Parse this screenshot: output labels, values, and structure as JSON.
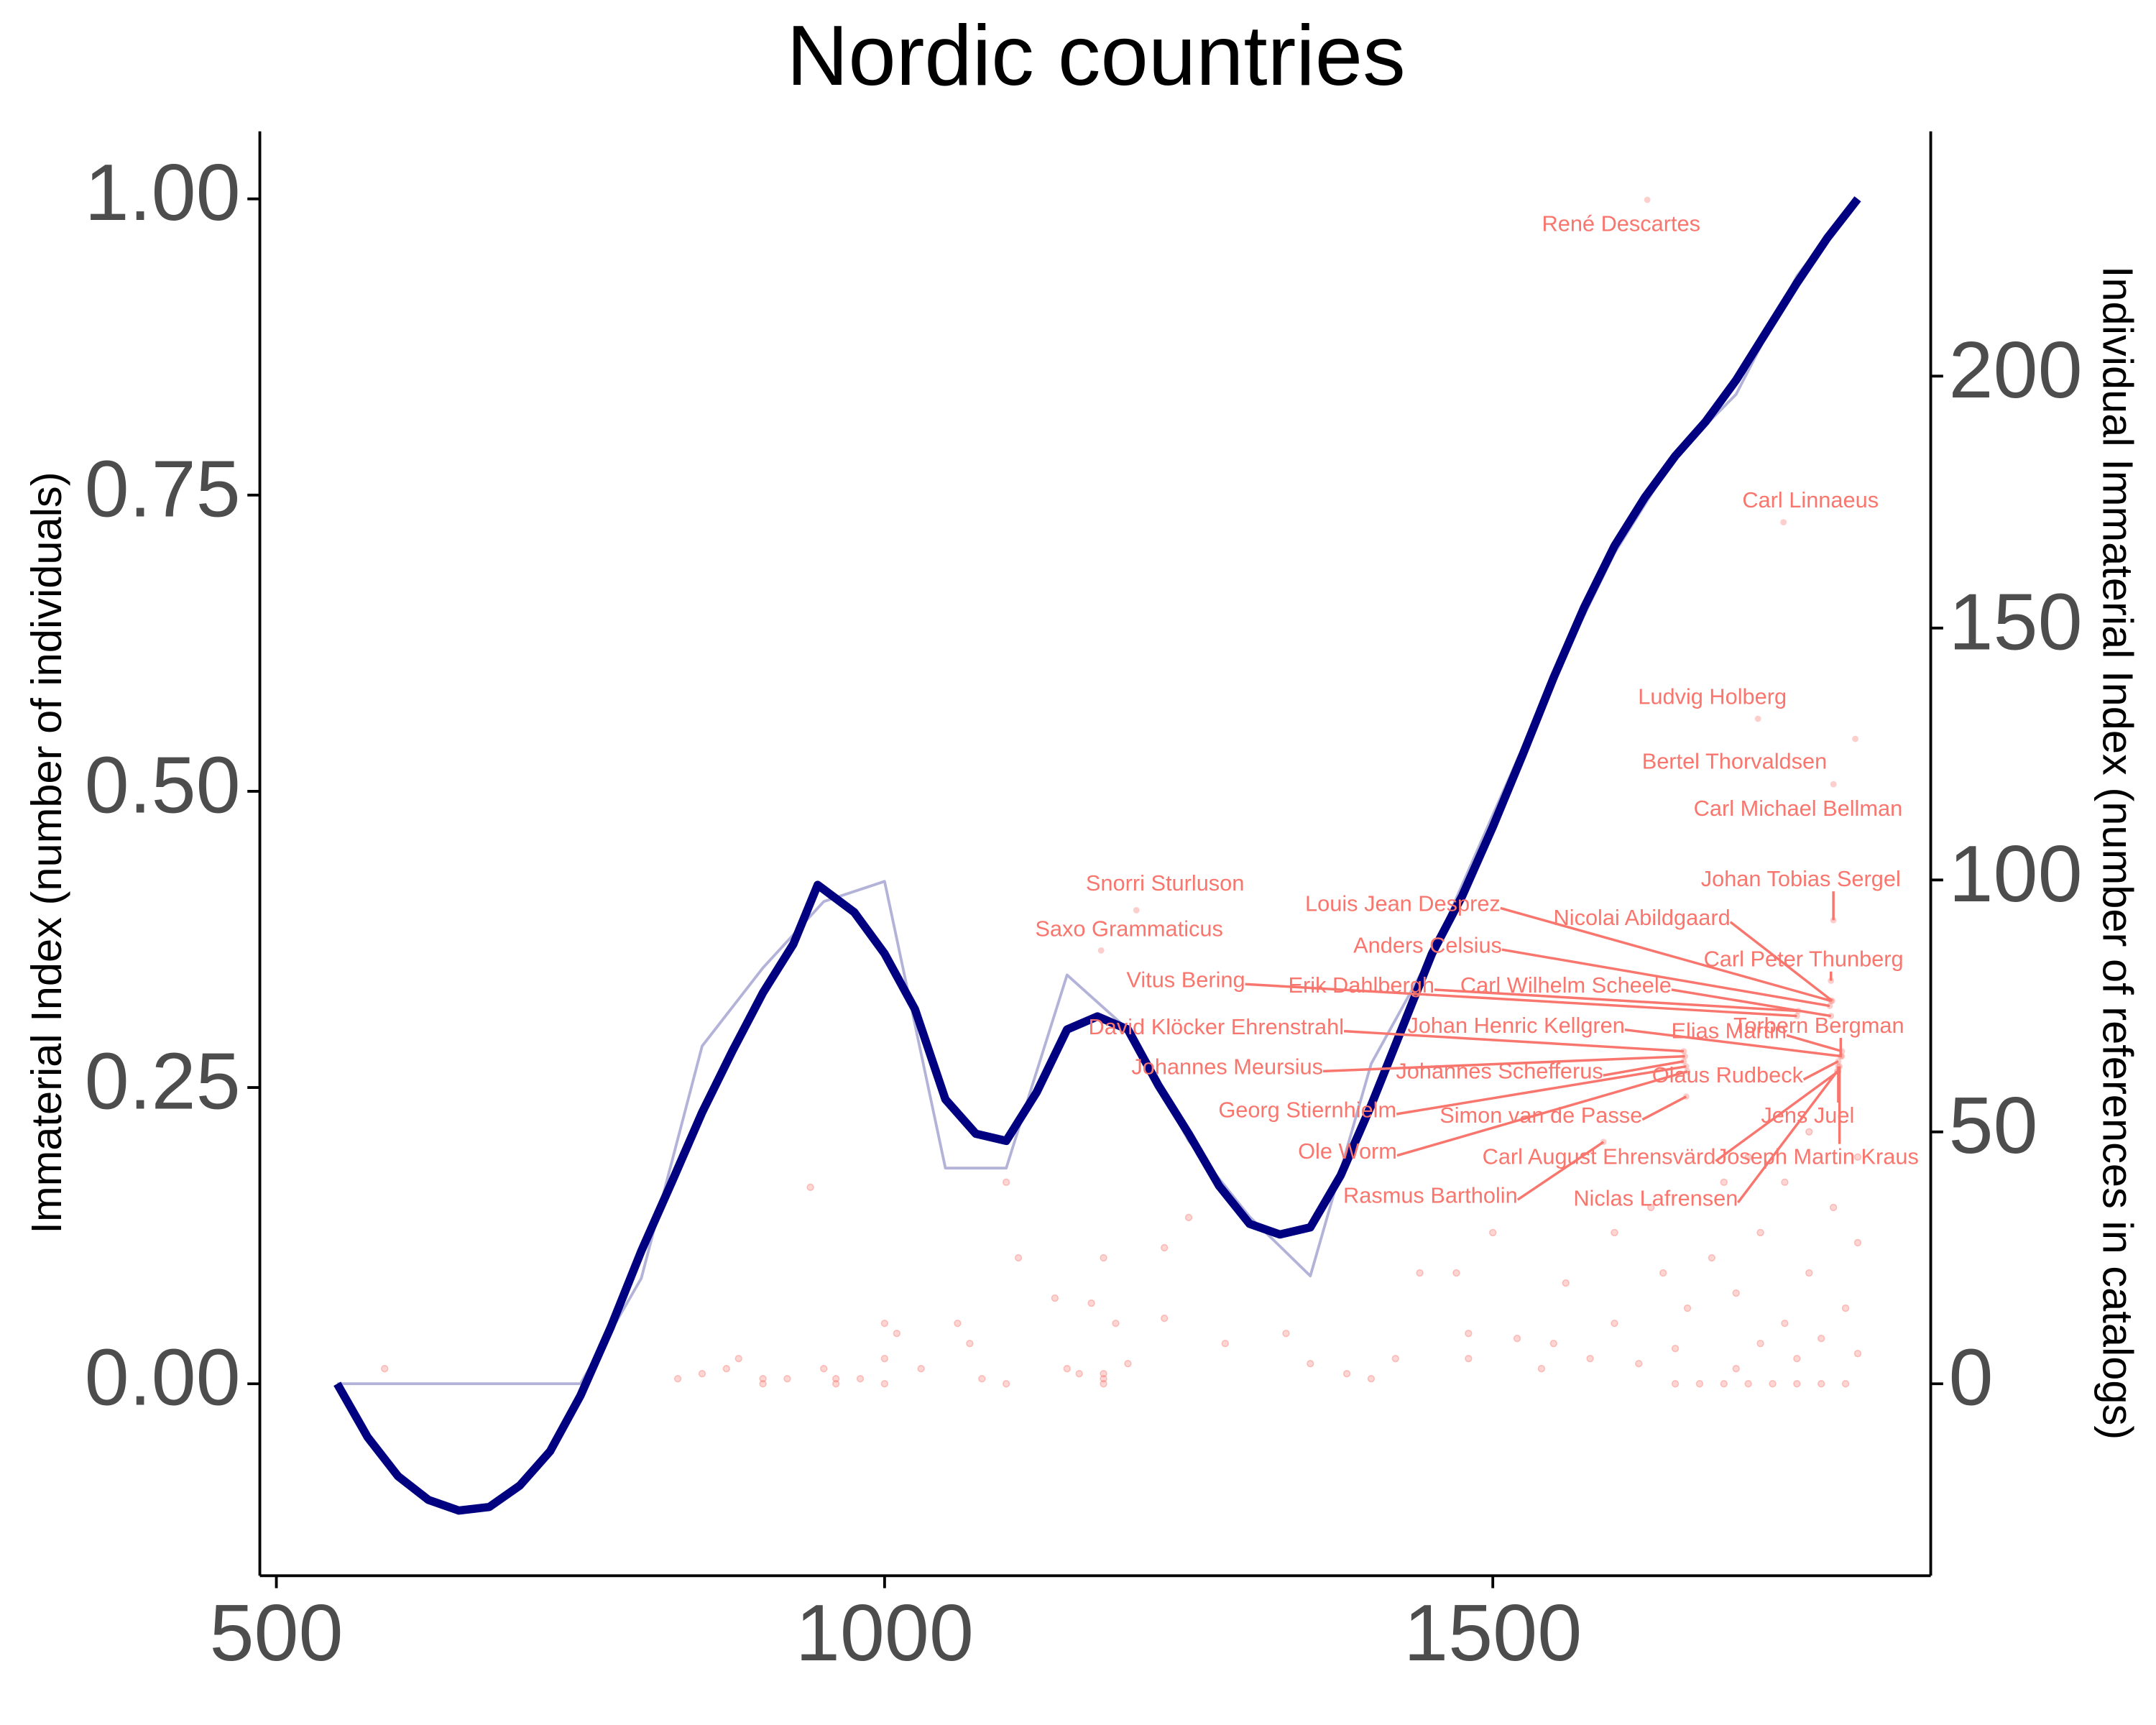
{
  "chart_data": {
    "type": "line",
    "title": "Nordic countries",
    "ylabel": "Immaterial Index (number of individuals)",
    "y2label": "Individual Immaterial Index (number of references in catalogs)",
    "xlim": [
      486.4,
      1860
    ],
    "ylim": [
      -0.162,
      1.057
    ],
    "y2lim": [
      -38.1,
      248.6
    ],
    "xticks": [
      500,
      1000,
      1500
    ],
    "yticks": [
      {
        "value": 0,
        "label": "0.00"
      },
      {
        "value": 0.25,
        "label": "0.25"
      },
      {
        "value": 0.5,
        "label": "0.50"
      },
      {
        "value": 0.75,
        "label": "0.75"
      },
      {
        "value": 1,
        "label": "1.00"
      }
    ],
    "y2ticks": [
      0,
      50,
      100,
      150,
      200
    ],
    "series": [
      {
        "color": "#b3b3d9",
        "x": [
          550,
          600,
          650,
          700,
          750,
          800,
          850,
          900,
          950,
          1000,
          1050,
          1100,
          1150,
          1200,
          1250,
          1300,
          1350,
          1400,
          1450,
          1500,
          1550,
          1600,
          1650,
          1700,
          1750,
          1800
        ],
        "values": [
          0,
          0,
          0,
          0,
          0,
          0.089,
          0.285,
          0.351,
          0.407,
          0.424,
          0.182,
          0.182,
          0.345,
          0.299,
          0.205,
          0.141,
          0.091,
          0.27,
          0.363,
          0.48,
          0.596,
          0.701,
          0.783,
          0.835,
          0.935,
          1.0
        ]
      },
      {
        "color": "#000080",
        "x": [
          550,
          575,
          600,
          625,
          650,
          675,
          700,
          725,
          750,
          775,
          800,
          825,
          850,
          875,
          900,
          925,
          945,
          975,
          1000,
          1025,
          1050,
          1075,
          1100,
          1125,
          1150,
          1175,
          1200,
          1225,
          1250,
          1275,
          1300,
          1325,
          1350,
          1375,
          1400,
          1425,
          1450,
          1475,
          1500,
          1525,
          1550,
          1575,
          1600,
          1625,
          1650,
          1675,
          1700,
          1725,
          1750,
          1775,
          1800
        ],
        "values": [
          0,
          -0.045,
          -0.078,
          -0.098,
          -0.107,
          -0.104,
          -0.086,
          -0.057,
          -0.01,
          0.048,
          0.112,
          0.17,
          0.229,
          0.281,
          0.33,
          0.371,
          0.421,
          0.398,
          0.363,
          0.316,
          0.24,
          0.211,
          0.205,
          0.246,
          0.299,
          0.31,
          0.299,
          0.252,
          0.211,
          0.167,
          0.135,
          0.126,
          0.132,
          0.176,
          0.235,
          0.299,
          0.363,
          0.412,
          0.47,
          0.532,
          0.596,
          0.655,
          0.707,
          0.748,
          0.783,
          0.812,
          0.847,
          0.888,
          0.929,
          0.967,
          1.0
        ]
      }
    ],
    "scatter": {
      "color": "#f8766d",
      "axis": "y2",
      "x": [
        589,
        830,
        850,
        870,
        880,
        900,
        900,
        920,
        939,
        950,
        960,
        960,
        980,
        1000,
        1000,
        1000,
        1010,
        1030,
        1060,
        1070,
        1080,
        1100,
        1100,
        1110,
        1140,
        1150,
        1160,
        1170,
        1180,
        1180,
        1180,
        1180,
        1190,
        1200,
        1230,
        1230,
        1250,
        1280,
        1330,
        1350,
        1380,
        1400,
        1420,
        1440,
        1470,
        1480,
        1480,
        1500,
        1520,
        1540,
        1550,
        1560,
        1580,
        1600,
        1600,
        1620,
        1630,
        1640,
        1650,
        1650,
        1660,
        1670,
        1680,
        1690,
        1690,
        1700,
        1700,
        1710,
        1710,
        1720,
        1720,
        1730,
        1740,
        1740,
        1750,
        1750,
        1760,
        1760,
        1770,
        1770,
        1780,
        1790,
        1790,
        1800,
        1800,
        1800
      ],
      "values": [
        3,
        1,
        2,
        3,
        5,
        1,
        0,
        1,
        39,
        3,
        1,
        0,
        1,
        5,
        12,
        0,
        10,
        3,
        12,
        8,
        1,
        40,
        0,
        25,
        17,
        3,
        2,
        16,
        1,
        2,
        25,
        0,
        12,
        4,
        13,
        27,
        33,
        8,
        10,
        4,
        2,
        1,
        5,
        22,
        22,
        5,
        10,
        30,
        9,
        3,
        8,
        20,
        5,
        12,
        30,
        4,
        35,
        22,
        7,
        0,
        15,
        0,
        25,
        40,
        0,
        3,
        18,
        45,
        0,
        8,
        30,
        0,
        12,
        40,
        5,
        0,
        22,
        50,
        9,
        0,
        35,
        15,
        0,
        6,
        28,
        45
      ]
    },
    "annotations": [
      {
        "text": "René Descartes",
        "x": 1627,
        "y": 235
      },
      {
        "text": "Carl Linnaeus",
        "x": 1739,
        "y": 171
      },
      {
        "text": "Ludvig Holberg",
        "x": 1718,
        "y": 132
      },
      {
        "text": "Bertel Thorvaldsen",
        "x": 1780,
        "y": 119
      },
      {
        "text": "Carl Michael Bellman",
        "x": 1798,
        "y": 128
      },
      {
        "text": "Johan Tobias Sergel",
        "x": 1780,
        "y": 92
      },
      {
        "text": "Snorri Sturluson",
        "x": 1207,
        "y": 94
      },
      {
        "text": "Saxo Grammaticus",
        "x": 1178,
        "y": 86
      },
      {
        "text": "Louis Jean Desprez",
        "x": 1778,
        "y": 76
      },
      {
        "text": "Nicolai Abildgaard",
        "x": 1779,
        "y": 76
      },
      {
        "text": "Anders Celsius",
        "x": 1777,
        "y": 75
      },
      {
        "text": "Carl Peter Thunberg",
        "x": 1778,
        "y": 80
      },
      {
        "text": "Vitus Bering",
        "x": 1750,
        "y": 73
      },
      {
        "text": "Erik Dahlbergh",
        "x": 1751,
        "y": 74
      },
      {
        "text": "Carl Wilhelm Scheele",
        "x": 1778,
        "y": 73
      },
      {
        "text": "David Klöcker Ehrenstrahl",
        "x": 1657,
        "y": 66
      },
      {
        "text": "Johan Henric Kellgren",
        "x": 1787,
        "y": 65
      },
      {
        "text": "Elias Martin",
        "x": 1787,
        "y": 66
      },
      {
        "text": "Torbern Bergman",
        "x": 1786,
        "y": 65
      },
      {
        "text": "Johannes Meursius",
        "x": 1658,
        "y": 65
      },
      {
        "text": "Johannes Schefferus",
        "x": 1657,
        "y": 64
      },
      {
        "text": "Olaus Rudbeck",
        "x": 1784,
        "y": 64
      },
      {
        "text": "Georg Stiernhielm",
        "x": 1659,
        "y": 63
      },
      {
        "text": "Simon van de Passe",
        "x": 1659,
        "y": 57
      },
      {
        "text": "Jens Juel",
        "x": 1784,
        "y": 63
      },
      {
        "text": "Ole Worm",
        "x": 1660,
        "y": 62
      },
      {
        "text": "Carl August Ehrensvärd",
        "x": 1784,
        "y": 62
      },
      {
        "text": "Joseph Martin Kraus",
        "x": 1785,
        "y": 63
      },
      {
        "text": "Rasmus Bartholin",
        "x": 1591,
        "y": 48
      },
      {
        "text": "Niclas Lafrensen",
        "x": 1783,
        "y": 62
      }
    ]
  }
}
